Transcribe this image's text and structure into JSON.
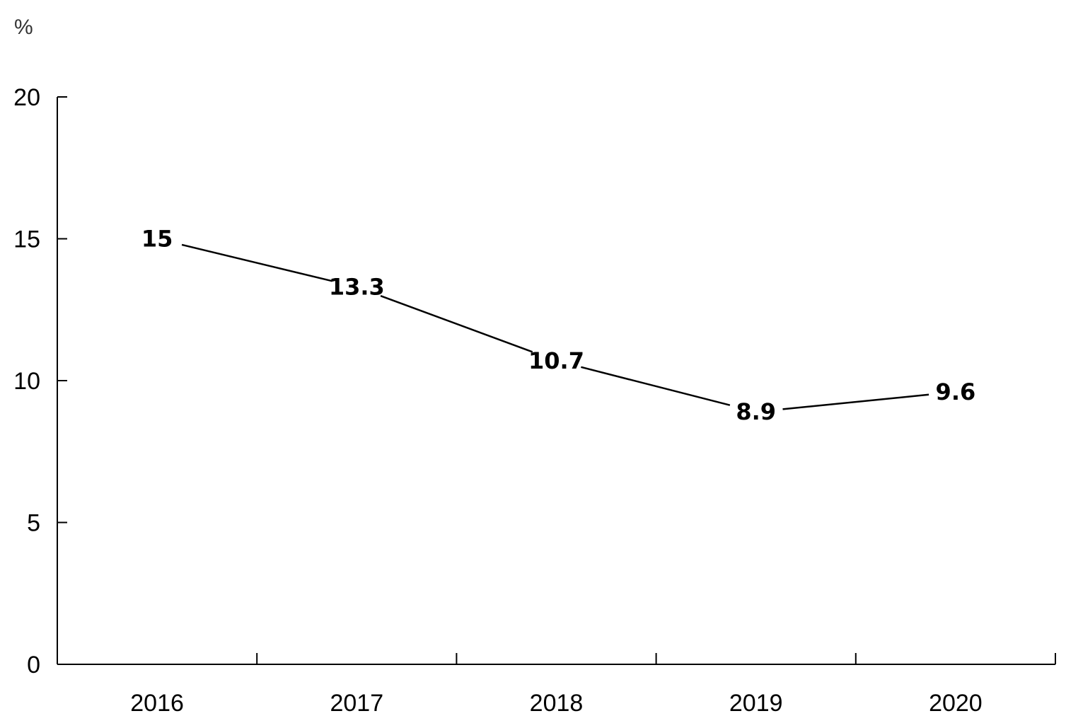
{
  "chart_data": {
    "type": "line",
    "title": "",
    "xlabel": "",
    "ylabel": "%",
    "categories": [
      "2016",
      "2017",
      "2018",
      "2019",
      "2020"
    ],
    "series": [
      {
        "values": [
          15,
          13.3,
          10.7,
          8.9,
          9.6
        ]
      }
    ],
    "data_labels": [
      "15",
      "13.3",
      "10.7",
      "8.9",
      "9.6"
    ],
    "y_ticks": [
      "0",
      "5",
      "10",
      "15",
      "20"
    ],
    "ylim": [
      0,
      20
    ],
    "grid": false,
    "legend": "none",
    "line_color": "#000000"
  }
}
